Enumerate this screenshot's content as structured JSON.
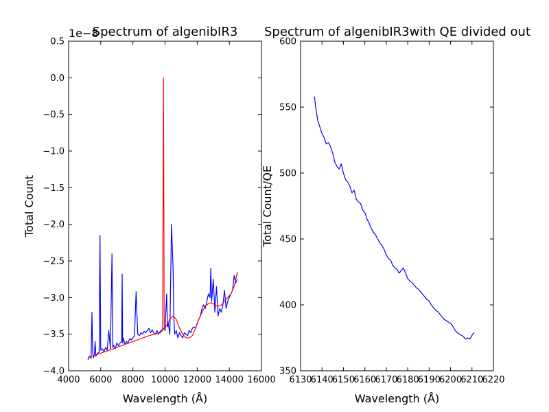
{
  "chart_data": [
    {
      "type": "line",
      "title": "Spectrum of algenibIR3",
      "xlabel": "Wavelength (Å)",
      "ylabel": "Total Count",
      "offset_text": "1e−8",
      "xlim": [
        4000,
        16000
      ],
      "ylim": [
        -4.0,
        0.5
      ],
      "xticks": [
        4000,
        6000,
        8000,
        10000,
        12000,
        14000,
        16000
      ],
      "xtick_labels": [
        "4000",
        "6000",
        "8000",
        "10000",
        "12000",
        "14000",
        "16000"
      ],
      "yticks": [
        -4.0,
        -3.5,
        -3.0,
        -2.5,
        -2.0,
        -1.5,
        -1.0,
        -0.5,
        0.0,
        0.5
      ],
      "ytick_labels": [
        "−4.0",
        "−3.5",
        "−3.0",
        "−2.5",
        "−2.0",
        "−1.5",
        "−1.0",
        "−0.5",
        "0.0",
        "0.5"
      ],
      "grid": false,
      "series": [
        {
          "color": "#0000ff",
          "x": [
            5200,
            5300,
            5400,
            5450,
            5500,
            5550,
            5600,
            5650,
            5700,
            5800,
            5900,
            5950,
            6000,
            6100,
            6200,
            6300,
            6400,
            6500,
            6600,
            6700,
            6750,
            6800,
            6900,
            7000,
            7100,
            7200,
            7300,
            7330,
            7360,
            7400,
            7500,
            7600,
            7700,
            7800,
            7900,
            8000,
            8100,
            8200,
            8300,
            8400,
            8500,
            8600,
            8700,
            8800,
            8900,
            9000,
            9100,
            9200,
            9300,
            9400,
            9500,
            9600,
            9700,
            9800,
            9900,
            10000,
            10100,
            10150,
            10200,
            10300,
            10400,
            10500,
            10550,
            10600,
            10700,
            10800,
            10900,
            11000,
            11100,
            11200,
            11300,
            11400,
            11500,
            11600,
            11700,
            11800,
            11900,
            12000,
            12100,
            12200,
            12300,
            12400,
            12500,
            12600,
            12700,
            12800,
            12850,
            12900,
            13000,
            13100,
            13200,
            13300,
            13400,
            13500,
            13600,
            13700,
            13800,
            13900,
            14000,
            14100,
            14200,
            14300,
            14400,
            14500
          ],
          "y": [
            -3.85,
            -3.8,
            -3.83,
            -3.2,
            -3.75,
            -3.82,
            -3.78,
            -3.6,
            -3.8,
            -3.76,
            -3.75,
            -2.15,
            -3.72,
            -3.7,
            -3.74,
            -3.68,
            -3.72,
            -3.45,
            -3.7,
            -2.4,
            -3.68,
            -3.65,
            -3.7,
            -3.62,
            -3.66,
            -3.62,
            -3.6,
            -2.68,
            -3.62,
            -3.55,
            -3.64,
            -3.6,
            -3.62,
            -3.56,
            -3.58,
            -3.55,
            -3.52,
            -2.92,
            -3.5,
            -3.52,
            -3.48,
            -3.5,
            -3.46,
            -3.48,
            -3.45,
            -3.42,
            -3.48,
            -3.44,
            -3.48,
            -3.5,
            -3.45,
            -3.5,
            -3.46,
            -3.44,
            -3.42,
            -3.45,
            -2.95,
            -3.4,
            -3.35,
            -3.5,
            -2.0,
            -2.6,
            -3.3,
            -3.5,
            -3.45,
            -3.55,
            -3.48,
            -3.52,
            -3.55,
            -3.48,
            -3.5,
            -3.52,
            -3.45,
            -3.48,
            -3.42,
            -3.4,
            -3.42,
            -3.35,
            -3.3,
            -3.25,
            -3.15,
            -3.1,
            -3.15,
            -3.05,
            -2.95,
            -3.0,
            -2.6,
            -3.05,
            -2.75,
            -3.2,
            -2.85,
            -3.25,
            -3.15,
            -3.2,
            -3.1,
            -2.9,
            -3.15,
            -3.05,
            -3.0,
            -2.95,
            -2.9,
            -2.7,
            -2.8,
            -2.75
          ]
        },
        {
          "color": "#ff0000",
          "x": [
            5200,
            6000,
            7000,
            8000,
            9000,
            9700,
            9850,
            9900,
            9950,
            10100,
            10300,
            10500,
            10700,
            10900,
            11100,
            11300,
            11500,
            11700,
            11900,
            12100,
            12300,
            12500,
            12700,
            12900,
            13100,
            13300,
            13500,
            13700,
            13900,
            14100,
            14300,
            14500
          ],
          "y": [
            -3.82,
            -3.76,
            -3.68,
            -3.6,
            -3.52,
            -3.48,
            -3.45,
            0.0,
            -3.42,
            -3.38,
            -3.3,
            -3.25,
            -3.3,
            -3.42,
            -3.5,
            -3.55,
            -3.55,
            -3.52,
            -3.42,
            -3.3,
            -3.2,
            -3.12,
            -3.08,
            -3.07,
            -3.1,
            -3.12,
            -3.1,
            -3.05,
            -3.0,
            -2.95,
            -2.85,
            -2.65
          ]
        }
      ]
    },
    {
      "type": "line",
      "title": "Spectrum of algenibIR3with QE divided out",
      "xlabel": "Wavelength (Å)",
      "ylabel": "Total Count/QE",
      "xlim": [
        6130,
        6220
      ],
      "ylim": [
        350,
        600
      ],
      "xticks": [
        6130,
        6140,
        6150,
        6160,
        6170,
        6180,
        6190,
        6200,
        6210,
        6220
      ],
      "xtick_labels": [
        "6130",
        "6140",
        "6150",
        "6160",
        "6170",
        "6180",
        "6190",
        "6200",
        "6210",
        "6220"
      ],
      "yticks": [
        350,
        400,
        450,
        500,
        550,
        600
      ],
      "ytick_labels": [
        "350",
        "400",
        "450",
        "500",
        "550",
        "600"
      ],
      "grid": false,
      "series": [
        {
          "color": "#0000ff",
          "x": [
            6136.5,
            6137,
            6138,
            6139,
            6140,
            6141,
            6142,
            6143,
            6144,
            6145,
            6146,
            6147,
            6148,
            6149,
            6150,
            6151,
            6152,
            6153,
            6154,
            6155,
            6156,
            6157,
            6158,
            6159,
            6160,
            6161,
            6162,
            6163,
            6164,
            6165,
            6166,
            6167,
            6168,
            6169,
            6170,
            6171,
            6172,
            6173,
            6174,
            6175,
            6176,
            6177,
            6178,
            6179,
            6180,
            6181,
            6182,
            6183,
            6184,
            6185,
            6186,
            6187,
            6188,
            6189,
            6190,
            6191,
            6192,
            6193,
            6194,
            6195,
            6196,
            6197,
            6198,
            6199,
            6200,
            6201,
            6202,
            6203,
            6204,
            6205,
            6206,
            6207,
            6208,
            6209,
            6210,
            6211
          ],
          "y": [
            558,
            550,
            540,
            535,
            530,
            527,
            522,
            523,
            520,
            515,
            508,
            505,
            503,
            507,
            500,
            495,
            493,
            490,
            485,
            487,
            480,
            478,
            477,
            472,
            470,
            465,
            462,
            458,
            455,
            453,
            450,
            447,
            445,
            442,
            438,
            435,
            434,
            430,
            428,
            427,
            424,
            426,
            428,
            424,
            420,
            418,
            417,
            415,
            413,
            412,
            410,
            408,
            406,
            404,
            403,
            400,
            398,
            396,
            395,
            393,
            391,
            389,
            388,
            387,
            386,
            384,
            381,
            379,
            378,
            377,
            376,
            374,
            375,
            374,
            377,
            379
          ]
        }
      ]
    }
  ]
}
